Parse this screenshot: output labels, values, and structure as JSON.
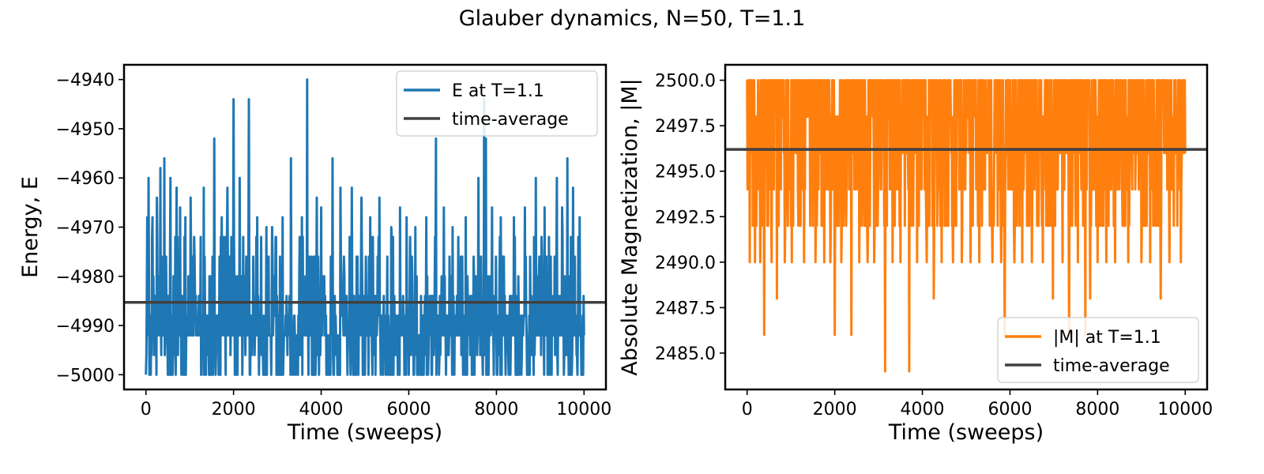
{
  "figure": {
    "title": "Glauber dynamics, N=50, T=1.1"
  },
  "chart_data": [
    {
      "type": "line",
      "xlabel": "Time (sweeps)",
      "ylabel": "Energy, E",
      "xlim": [
        -500,
        10500
      ],
      "ylim": [
        -5003,
        -4937
      ],
      "xticks": [
        0,
        2000,
        4000,
        6000,
        8000,
        10000
      ],
      "yticks": [
        -5000,
        -4990,
        -4980,
        -4970,
        -4960,
        -4950,
        -4940
      ],
      "ytick_labels": [
        "−5000",
        "−4990",
        "−4980",
        "−4970",
        "−4960",
        "−4950",
        "−4940"
      ],
      "grid": false,
      "legend_position": "upper right",
      "series": [
        {
          "name": "E at T=1.1",
          "color": "#1f77b4",
          "baseline_low": -5000,
          "baseline_high": -4976,
          "spikes": [
            [
              30,
              -4968
            ],
            [
              60,
              -4960
            ],
            [
              150,
              -4968
            ],
            [
              250,
              -4964
            ],
            [
              330,
              -4958
            ],
            [
              420,
              -4956
            ],
            [
              560,
              -4960
            ],
            [
              700,
              -4962
            ],
            [
              780,
              -4966
            ],
            [
              900,
              -4968
            ],
            [
              1020,
              -4964
            ],
            [
              1320,
              -4962
            ],
            [
              1560,
              -4952
            ],
            [
              1730,
              -4968
            ],
            [
              1860,
              -4962
            ],
            [
              2000,
              -4944
            ],
            [
              2140,
              -4960
            ],
            [
              2350,
              -4944
            ],
            [
              2540,
              -4968
            ],
            [
              2750,
              -4970
            ],
            [
              2880,
              -4970
            ],
            [
              3120,
              -4968
            ],
            [
              3310,
              -4956
            ],
            [
              3560,
              -4968
            ],
            [
              3680,
              -4940
            ],
            [
              3900,
              -4964
            ],
            [
              4000,
              -4966
            ],
            [
              4260,
              -4956
            ],
            [
              4440,
              -4962
            ],
            [
              4700,
              -4962
            ],
            [
              4920,
              -4964
            ],
            [
              5120,
              -4968
            ],
            [
              5330,
              -4964
            ],
            [
              5600,
              -4970
            ],
            [
              5800,
              -4966
            ],
            [
              5950,
              -4968
            ],
            [
              6150,
              -4970
            ],
            [
              6400,
              -4968
            ],
            [
              6620,
              -4952
            ],
            [
              6800,
              -4966
            ],
            [
              7000,
              -4970
            ],
            [
              7300,
              -4968
            ],
            [
              7590,
              -4960
            ],
            [
              7720,
              -4944
            ],
            [
              7760,
              -4952
            ],
            [
              7900,
              -4966
            ],
            [
              8100,
              -4968
            ],
            [
              8400,
              -4968
            ],
            [
              8650,
              -4966
            ],
            [
              8900,
              -4960
            ],
            [
              9100,
              -4966
            ],
            [
              9380,
              -4960
            ],
            [
              9500,
              -4966
            ],
            [
              9620,
              -4956
            ],
            [
              9750,
              -4962
            ],
            [
              9900,
              -4968
            ]
          ]
        },
        {
          "name": "time-average",
          "color": "#404040",
          "value": -4985.3
        }
      ]
    },
    {
      "type": "line",
      "xlabel": "Time (sweeps)",
      "ylabel": "Absolute Magnetization, |M|",
      "xlim": [
        -500,
        10500
      ],
      "ylim": [
        2483.0,
        2500.85
      ],
      "xticks": [
        0,
        2000,
        4000,
        6000,
        8000,
        10000
      ],
      "yticks": [
        2485.0,
        2487.5,
        2490.0,
        2492.5,
        2495.0,
        2497.5,
        2500.0
      ],
      "ytick_labels": [
        "2485.0",
        "2487.5",
        "2490.0",
        "2492.5",
        "2495.0",
        "2497.5",
        "2500.0"
      ],
      "grid": false,
      "legend_position": "lower right",
      "series": [
        {
          "name": "|M| at T=1.1",
          "color": "#ff7f0e",
          "baseline_low": 2492,
          "baseline_high": 2500,
          "spikes": [
            [
              60,
              2490
            ],
            [
              180,
              2490
            ],
            [
              300,
              2490
            ],
            [
              390,
              2486
            ],
            [
              560,
              2490
            ],
            [
              680,
              2488
            ],
            [
              860,
              2490
            ],
            [
              1020,
              2490
            ],
            [
              1300,
              2490
            ],
            [
              1560,
              2490
            ],
            [
              1760,
              2490
            ],
            [
              1900,
              2490
            ],
            [
              2000,
              2486
            ],
            [
              2150,
              2490
            ],
            [
              2380,
              2486
            ],
            [
              2560,
              2490
            ],
            [
              2750,
              2490
            ],
            [
              2900,
              2490
            ],
            [
              3150,
              2484
            ],
            [
              3320,
              2490
            ],
            [
              3500,
              2490
            ],
            [
              3700,
              2484
            ],
            [
              3880,
              2490
            ],
            [
              4100,
              2490
            ],
            [
              4260,
              2488
            ],
            [
              4440,
              2490
            ],
            [
              4700,
              2490
            ],
            [
              4900,
              2490
            ],
            [
              5100,
              2490
            ],
            [
              5300,
              2490
            ],
            [
              5600,
              2490
            ],
            [
              5800,
              2490
            ],
            [
              5880,
              2486
            ],
            [
              6100,
              2490
            ],
            [
              6280,
              2490
            ],
            [
              6500,
              2490
            ],
            [
              6750,
              2490
            ],
            [
              6980,
              2488
            ],
            [
              7200,
              2490
            ],
            [
              7350,
              2486
            ],
            [
              7550,
              2490
            ],
            [
              7720,
              2486
            ],
            [
              7830,
              2488
            ],
            [
              8000,
              2490
            ],
            [
              8200,
              2490
            ],
            [
              8400,
              2490
            ],
            [
              8700,
              2490
            ],
            [
              9000,
              2490
            ],
            [
              9200,
              2490
            ],
            [
              9440,
              2488
            ],
            [
              9640,
              2490
            ],
            [
              9900,
              2490
            ]
          ]
        },
        {
          "name": "time-average",
          "color": "#404040",
          "value": 2496.2
        }
      ]
    }
  ]
}
